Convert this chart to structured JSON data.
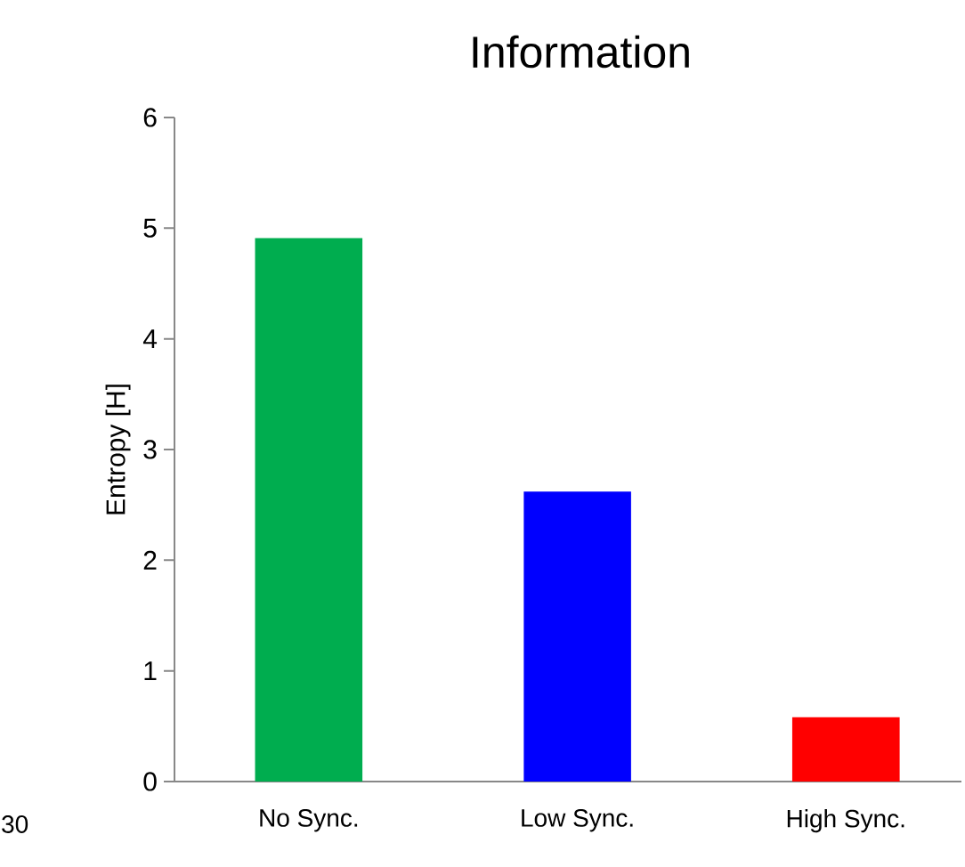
{
  "chart_data": {
    "type": "bar",
    "title": "Information",
    "ylabel": "Entropy [H]",
    "categories": [
      "No Sync.",
      "Low Sync.",
      "High Sync."
    ],
    "values": [
      4.91,
      2.62,
      0.58
    ],
    "colors": [
      "#00ad4f",
      "#0000ff",
      "#ff0000"
    ],
    "ylim": [
      0,
      6
    ],
    "yticks": [
      0,
      1,
      2,
      3,
      4,
      5,
      6
    ],
    "annotations": [
      "30"
    ]
  }
}
